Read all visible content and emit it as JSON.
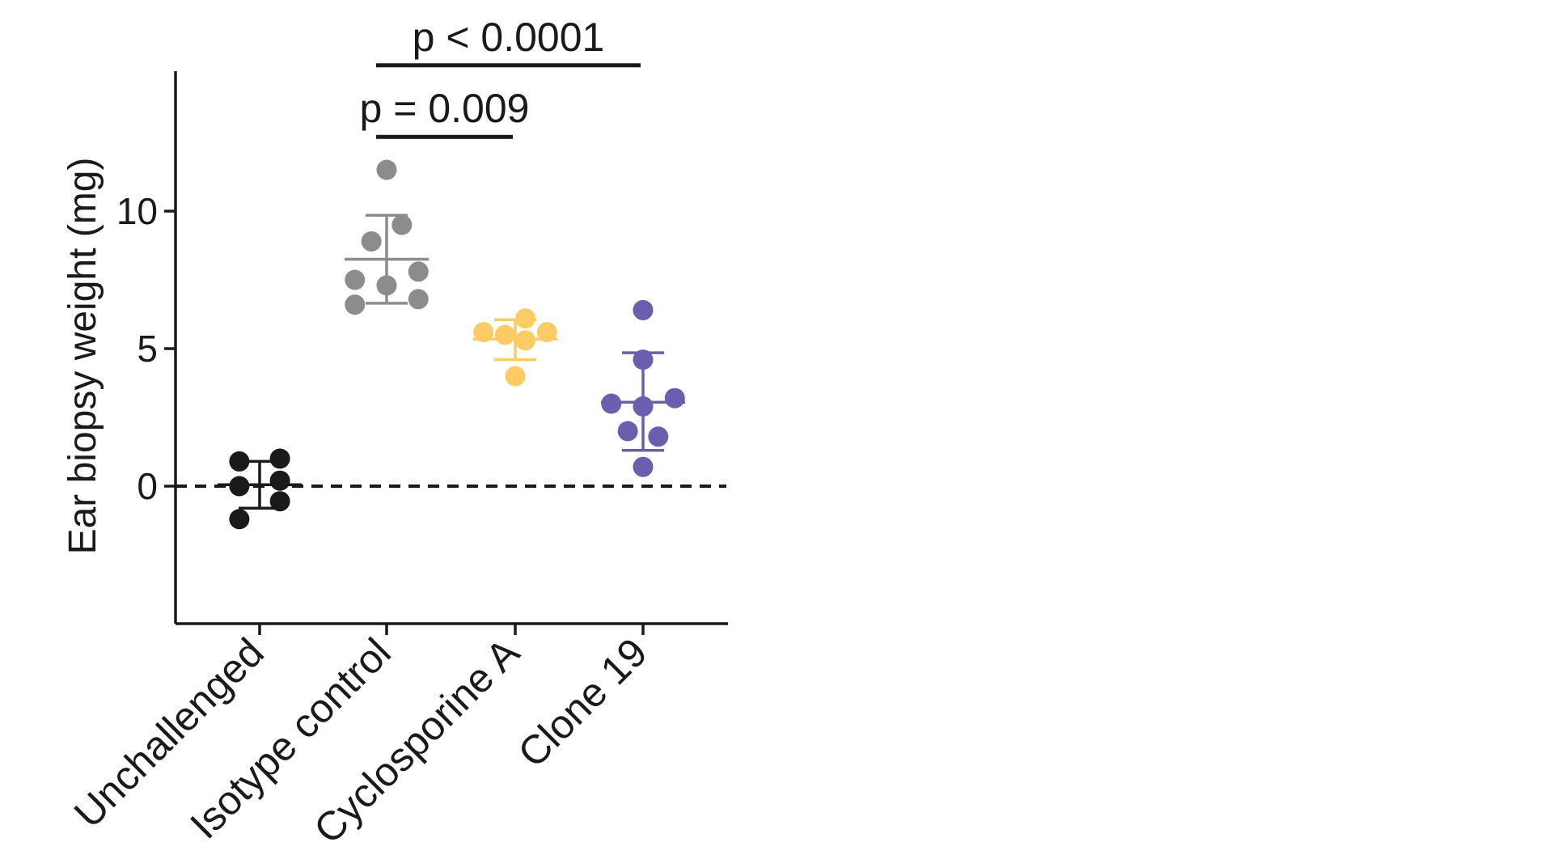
{
  "chart_data": {
    "type": "scatter",
    "title": "",
    "xlabel": "",
    "ylabel": "Ear biopsy weight (mg)",
    "ylim": [
      -5,
      15
    ],
    "yticks": [
      0,
      5,
      10
    ],
    "ytick_labels": [
      "0",
      "5",
      "10"
    ],
    "grid": false,
    "legend": "none",
    "reference_line": {
      "y": 0,
      "style": "dashed",
      "color": "#1a1a1a"
    },
    "categories": [
      "Unchallenged",
      "Isotype control",
      "Cyclosporine A",
      "Clone 19"
    ],
    "series": [
      {
        "category": "Unchallenged",
        "color": "#1a1a1a",
        "points": [
          {
            "x_offset": -0.16,
            "y": 0.9
          },
          {
            "x_offset": 0.16,
            "y": 1.0
          },
          {
            "x_offset": -0.16,
            "y": 0.0
          },
          {
            "x_offset": 0.16,
            "y": 0.2
          },
          {
            "x_offset": 0.16,
            "y": -0.55
          },
          {
            "x_offset": -0.16,
            "y": -1.2
          }
        ],
        "mean": 0.05,
        "sd_upper": 0.9,
        "sd_lower": -0.8
      },
      {
        "category": "Isotype control",
        "color": "#8c8c8c",
        "points": [
          {
            "x_offset": 0.0,
            "y": 11.5
          },
          {
            "x_offset": 0.12,
            "y": 9.5
          },
          {
            "x_offset": -0.12,
            "y": 8.9
          },
          {
            "x_offset": -0.25,
            "y": 7.5
          },
          {
            "x_offset": 0.0,
            "y": 7.3
          },
          {
            "x_offset": 0.25,
            "y": 7.8
          },
          {
            "x_offset": -0.25,
            "y": 6.6
          },
          {
            "x_offset": 0.25,
            "y": 6.8
          }
        ],
        "mean": 8.25,
        "sd_upper": 9.85,
        "sd_lower": 6.65
      },
      {
        "category": "Cyclosporine A",
        "color": "#fccb65",
        "points": [
          {
            "x_offset": 0.08,
            "y": 6.1
          },
          {
            "x_offset": -0.25,
            "y": 5.6
          },
          {
            "x_offset": -0.08,
            "y": 5.5
          },
          {
            "x_offset": 0.25,
            "y": 5.6
          },
          {
            "x_offset": 0.08,
            "y": 5.3
          },
          {
            "x_offset": 0.0,
            "y": 4.0
          }
        ],
        "mean": 5.35,
        "sd_upper": 6.05,
        "sd_lower": 4.6
      },
      {
        "category": "Clone 19",
        "color": "#6a5fae",
        "points": [
          {
            "x_offset": 0.0,
            "y": 6.4
          },
          {
            "x_offset": 0.0,
            "y": 4.6
          },
          {
            "x_offset": 0.25,
            "y": 3.2
          },
          {
            "x_offset": -0.25,
            "y": 3.0
          },
          {
            "x_offset": 0.0,
            "y": 2.9
          },
          {
            "x_offset": -0.12,
            "y": 2.0
          },
          {
            "x_offset": 0.12,
            "y": 1.8
          },
          {
            "x_offset": 0.0,
            "y": 0.7
          }
        ],
        "mean": 3.05,
        "sd_upper": 4.85,
        "sd_lower": 1.3
      }
    ],
    "annotations": [
      {
        "text": "p < 0.0001",
        "from": "Isotype control",
        "to": "Clone 19",
        "bracket_y": 15.3
      },
      {
        "text": "p = 0.009",
        "from": "Isotype control",
        "to": "Cyclosporine A",
        "bracket_y": 12.7
      }
    ]
  }
}
